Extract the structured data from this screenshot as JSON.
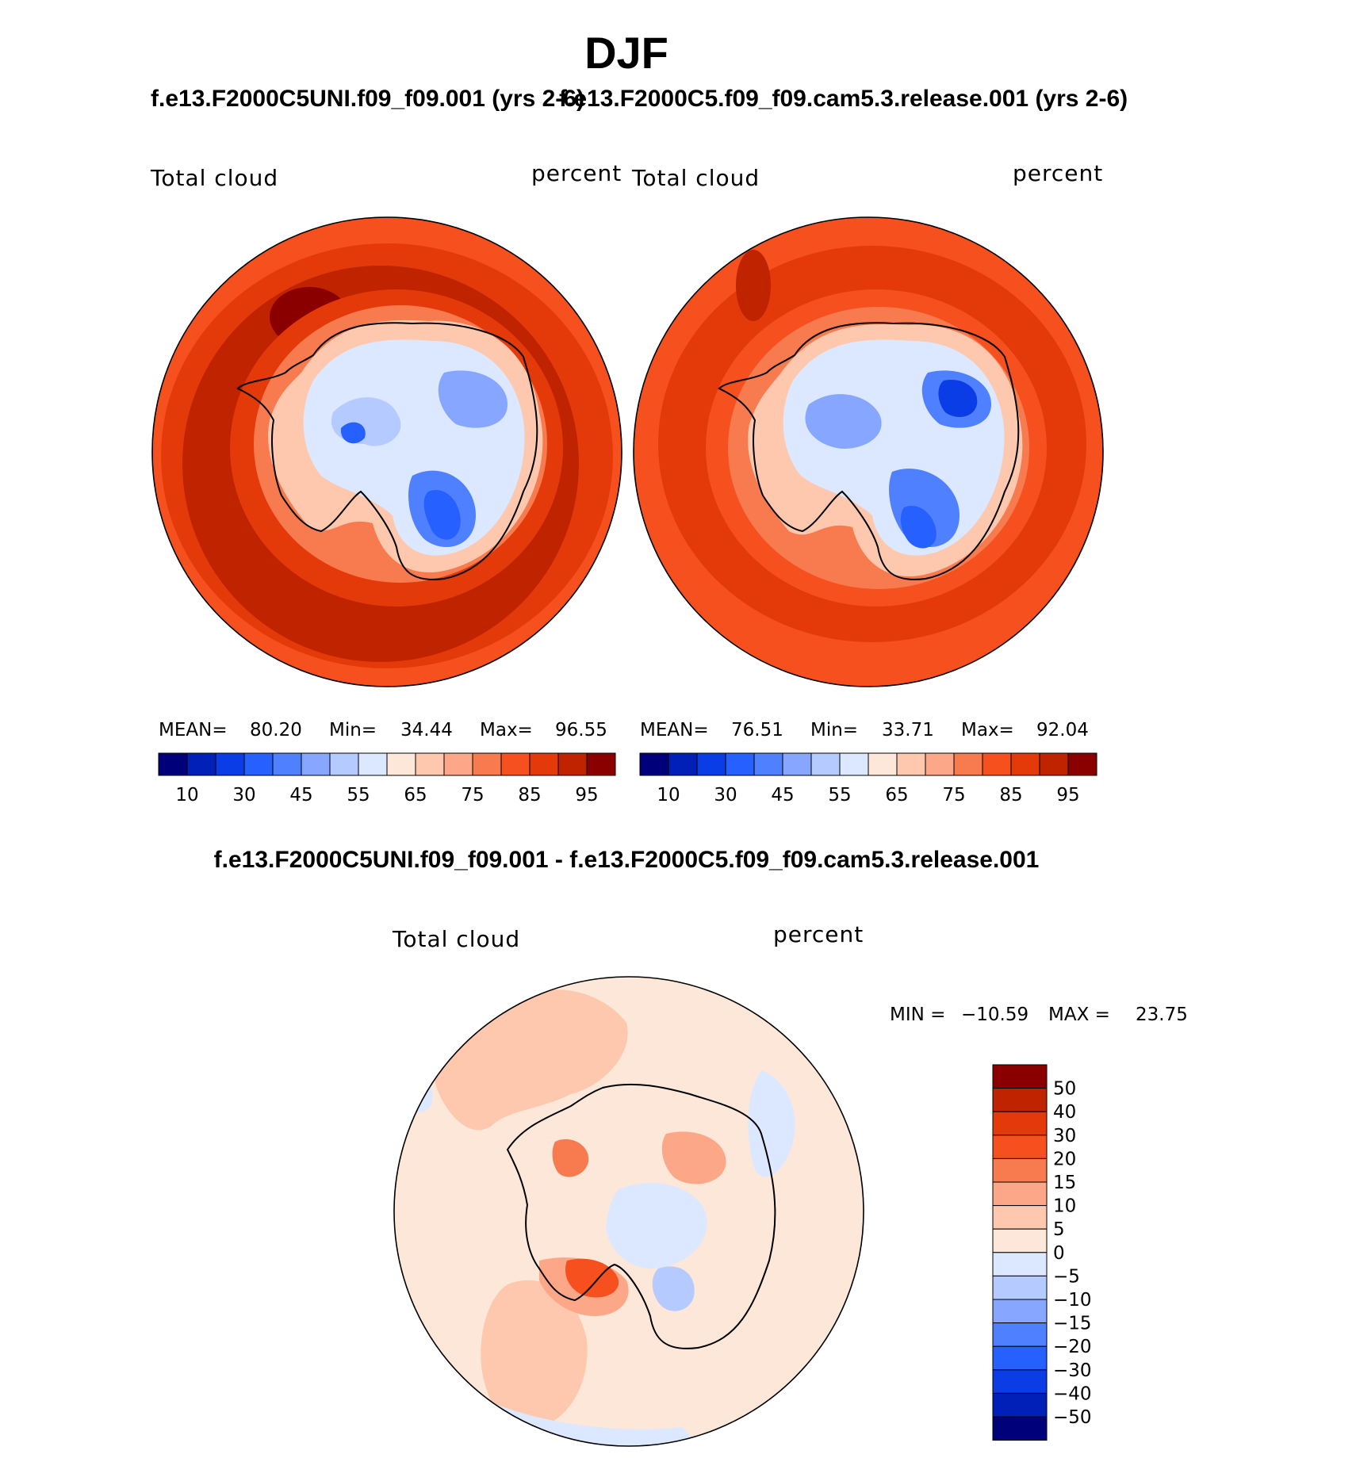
{
  "chart_data": [
    {
      "type": "heatmap",
      "projection": "south-polar-stereographic",
      "title": "f.e13.F2000C5UNI.f09_f09.001 (yrs 2-6)",
      "left_label": "Total cloud",
      "right_label": "percent",
      "stats": {
        "mean_label": "MEAN=",
        "mean": "80.20",
        "min_label": "Min=",
        "min": "34.44",
        "max_label": "Max=",
        "max": "96.55"
      },
      "colorbar_ticks": [
        "10",
        "30",
        "45",
        "55",
        "65",
        "75",
        "85",
        "95"
      ]
    },
    {
      "type": "heatmap",
      "projection": "south-polar-stereographic",
      "title": "f.e13.F2000C5.f09_f09.cam5.3.release.001 (yrs 2-6)",
      "left_label": "Total cloud",
      "right_label": "percent",
      "stats": {
        "mean_label": "MEAN=",
        "mean": "76.51",
        "min_label": "Min=",
        "min": "33.71",
        "max_label": "Max=",
        "max": "92.04"
      },
      "colorbar_ticks": [
        "10",
        "30",
        "45",
        "55",
        "65",
        "75",
        "85",
        "95"
      ]
    },
    {
      "type": "heatmap",
      "projection": "south-polar-stereographic",
      "title": "f.e13.F2000C5UNI.f09_f09.001 - f.e13.F2000C5.f09_f09.cam5.3.release.001",
      "left_label": "Total cloud",
      "right_label": "percent",
      "stats": {
        "min_label": "MIN =",
        "min": "−10.59",
        "max_label": "MAX =",
        "max": "23.75"
      },
      "colorbar_ticks": [
        "50",
        "40",
        "30",
        "20",
        "15",
        "10",
        "5",
        "0",
        "−5",
        "−10",
        "−15",
        "−20",
        "−30",
        "−40",
        "−50"
      ]
    }
  ],
  "page": {
    "title": "DJF"
  },
  "colors": {
    "abs_scale": [
      "#00007a",
      "#0020b8",
      "#0a3de6",
      "#2660ff",
      "#4f80ff",
      "#86a6ff",
      "#b5caff",
      "#dce8ff",
      "#fde7d9",
      "#fdc8ae",
      "#fca788",
      "#f87a4f",
      "#f5501e",
      "#e43a0a",
      "#bf2300",
      "#8a0000"
    ],
    "diff_scale": [
      "#8a0000",
      "#bf2300",
      "#e43a0a",
      "#f5501e",
      "#f87a4f",
      "#fca788",
      "#fdc8ae",
      "#fde7d9",
      "#dce8ff",
      "#b5caff",
      "#86a6ff",
      "#4f80ff",
      "#2660ff",
      "#0a3de6",
      "#0020b8",
      "#00007a"
    ]
  }
}
